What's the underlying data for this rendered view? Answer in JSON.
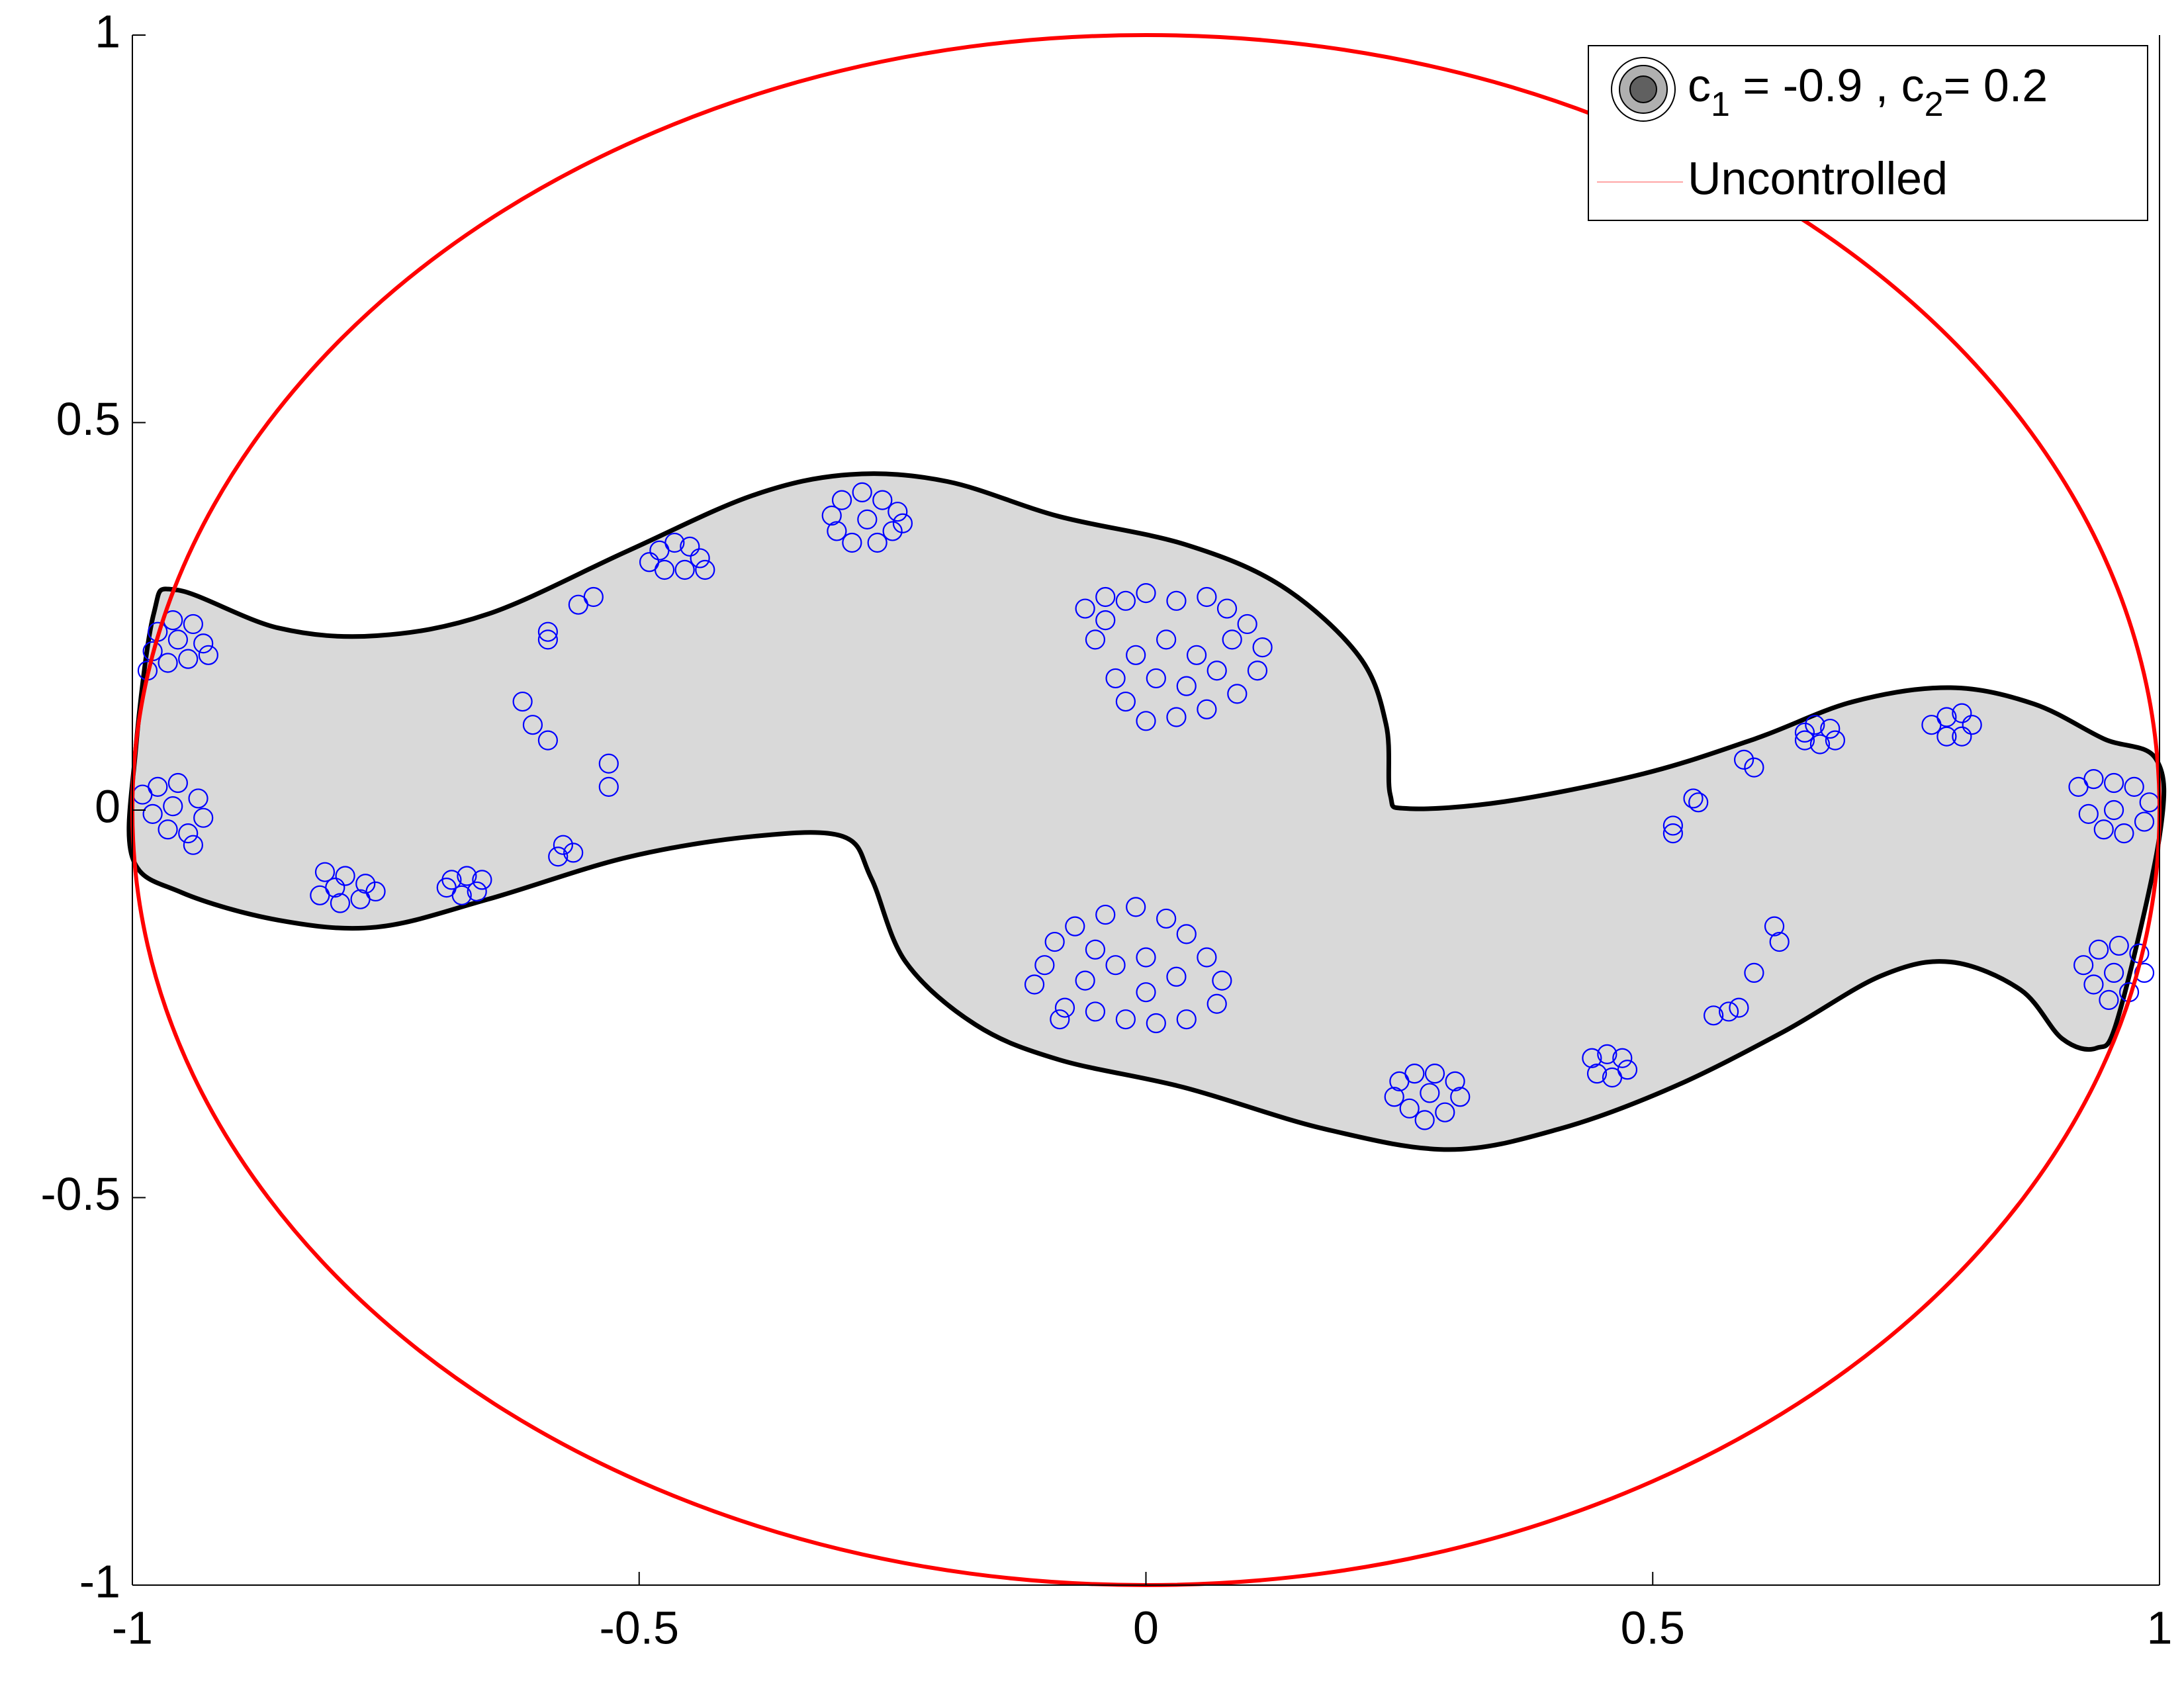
{
  "chart_data": {
    "type": "scatter",
    "xlim": [
      -1,
      1
    ],
    "ylim": [
      -1,
      1
    ],
    "xticks": [
      -1,
      -0.5,
      0,
      0.5,
      1
    ],
    "yticks": [
      -1,
      -0.5,
      0,
      0.5,
      1
    ],
    "legend": "upper right",
    "region": {
      "fill": "#d9d9d9",
      "edge": "#000000",
      "x": [
        -0.997,
        -0.979,
        -0.956,
        -0.856,
        -0.759,
        -0.649,
        -0.512,
        -0.388,
        -0.292,
        -0.196,
        -0.086,
        0.038,
        0.134,
        0.21,
        0.237,
        0.241,
        0.258,
        0.354,
        0.491,
        0.601,
        0.698,
        0.794,
        0.876,
        0.945,
        0.997,
        1.0,
        0.959,
        0.938,
        0.904,
        0.863,
        0.794,
        0.725,
        0.629,
        0.519,
        0.409,
        0.299,
        0.175,
        0.038,
        -0.086,
        -0.168,
        -0.237,
        -0.271,
        -0.299,
        -0.388,
        -0.512,
        -0.649,
        -0.759,
        -0.856,
        -0.952,
        -1.0
      ],
      "y": [
        0.074,
        0.253,
        0.284,
        0.235,
        0.225,
        0.253,
        0.334,
        0.406,
        0.433,
        0.424,
        0.379,
        0.343,
        0.289,
        0.199,
        0.11,
        0.02,
        0.002,
        0.011,
        0.047,
        0.092,
        0.14,
        0.158,
        0.137,
        0.092,
        0.065,
        -0.034,
        -0.268,
        -0.307,
        -0.295,
        -0.232,
        -0.196,
        -0.214,
        -0.286,
        -0.358,
        -0.411,
        -0.438,
        -0.411,
        -0.358,
        -0.322,
        -0.277,
        -0.196,
        -0.088,
        -0.034,
        -0.034,
        -0.061,
        -0.115,
        -0.151,
        -0.142,
        -0.106,
        -0.061
      ]
    },
    "series": [
      {
        "name": [
          "c",
          "1",
          " = -0.9 , c",
          "2",
          "= 0.2"
        ],
        "color": "#0000ff",
        "type": "scatter",
        "x": [
          -0.975,
          -0.96,
          -0.94,
          -0.93,
          -0.945,
          -0.965,
          -0.98,
          -0.955,
          -0.925,
          -0.985,
          -0.99,
          -0.975,
          -0.955,
          -0.935,
          -0.93,
          -0.945,
          -0.965,
          -0.98,
          -0.96,
          -0.94,
          -0.81,
          -0.79,
          -0.77,
          -0.775,
          -0.795,
          -0.815,
          -0.8,
          -0.76,
          -0.685,
          -0.67,
          -0.655,
          -0.66,
          -0.675,
          -0.69,
          -0.615,
          -0.605,
          -0.59,
          -0.59,
          -0.59,
          -0.56,
          -0.545,
          -0.53,
          -0.53,
          -0.575,
          -0.58,
          -0.565,
          -0.48,
          -0.465,
          -0.45,
          -0.44,
          -0.455,
          -0.475,
          -0.49,
          -0.435,
          -0.31,
          -0.3,
          -0.28,
          -0.26,
          -0.245,
          -0.25,
          -0.265,
          -0.29,
          -0.305,
          -0.275,
          -0.24,
          -0.06,
          -0.04,
          -0.02,
          0.0,
          0.03,
          0.06,
          0.08,
          0.1,
          0.115,
          0.11,
          0.09,
          0.06,
          0.03,
          0.0,
          -0.02,
          -0.03,
          -0.05,
          -0.01,
          0.02,
          0.05,
          0.07,
          0.04,
          0.01,
          -0.04,
          0.085,
          -0.1,
          -0.11,
          -0.09,
          -0.07,
          -0.04,
          -0.01,
          0.02,
          0.04,
          0.06,
          0.075,
          0.07,
          0.04,
          0.01,
          -0.02,
          -0.05,
          -0.08,
          -0.06,
          -0.03,
          0.0,
          0.03,
          -0.05,
          0.0,
          -0.085,
          0.25,
          0.265,
          0.285,
          0.305,
          0.31,
          0.295,
          0.275,
          0.26,
          0.245,
          0.28,
          0.44,
          0.455,
          0.47,
          0.475,
          0.46,
          0.445,
          0.52,
          0.52,
          0.54,
          0.545,
          0.6,
          0.59,
          0.62,
          0.625,
          0.6,
          0.56,
          0.575,
          0.585,
          0.65,
          0.66,
          0.675,
          0.68,
          0.665,
          0.65,
          0.775,
          0.79,
          0.805,
          0.815,
          0.805,
          0.79,
          0.92,
          0.935,
          0.955,
          0.975,
          0.99,
          0.985,
          0.965,
          0.945,
          0.93,
          0.955,
          0.925,
          0.94,
          0.96,
          0.98,
          0.985,
          0.97,
          0.95,
          0.935,
          0.955
        ],
        "y": [
          0.23,
          0.245,
          0.24,
          0.215,
          0.195,
          0.19,
          0.205,
          0.22,
          0.2,
          0.18,
          0.02,
          0.03,
          0.035,
          0.015,
          -0.01,
          -0.03,
          -0.025,
          -0.005,
          0.005,
          -0.045,
          -0.08,
          -0.085,
          -0.095,
          -0.115,
          -0.12,
          -0.11,
          -0.1,
          -0.105,
          -0.09,
          -0.085,
          -0.09,
          -0.105,
          -0.11,
          -0.1,
          0.14,
          0.11,
          0.09,
          0.22,
          0.23,
          0.265,
          0.275,
          0.06,
          0.03,
          -0.045,
          -0.06,
          -0.055,
          0.335,
          0.345,
          0.34,
          0.325,
          0.31,
          0.31,
          0.32,
          0.31,
          0.38,
          0.4,
          0.41,
          0.4,
          0.385,
          0.36,
          0.345,
          0.345,
          0.36,
          0.375,
          0.37,
          0.26,
          0.275,
          0.27,
          0.28,
          0.27,
          0.275,
          0.26,
          0.24,
          0.21,
          0.18,
          0.15,
          0.13,
          0.12,
          0.115,
          0.14,
          0.17,
          0.22,
          0.2,
          0.22,
          0.2,
          0.18,
          0.16,
          0.17,
          0.245,
          0.22,
          -0.2,
          -0.225,
          -0.17,
          -0.15,
          -0.135,
          -0.125,
          -0.14,
          -0.16,
          -0.19,
          -0.22,
          -0.25,
          -0.27,
          -0.275,
          -0.27,
          -0.26,
          -0.255,
          -0.22,
          -0.2,
          -0.19,
          -0.215,
          -0.18,
          -0.235,
          -0.27,
          -0.35,
          -0.34,
          -0.34,
          -0.35,
          -0.37,
          -0.39,
          -0.4,
          -0.385,
          -0.37,
          -0.365,
          -0.32,
          -0.315,
          -0.32,
          -0.335,
          -0.345,
          -0.34,
          -0.03,
          -0.02,
          0.015,
          0.01,
          0.055,
          0.065,
          -0.15,
          -0.17,
          -0.21,
          -0.265,
          -0.26,
          -0.255,
          0.1,
          0.11,
          0.105,
          0.09,
          0.085,
          0.09,
          0.11,
          0.12,
          0.125,
          0.11,
          0.095,
          0.095,
          0.03,
          0.04,
          0.035,
          0.03,
          0.01,
          -0.015,
          -0.03,
          -0.025,
          -0.005,
          0.0,
          -0.2,
          -0.18,
          -0.175,
          -0.185,
          -0.21,
          -0.235,
          -0.245,
          -0.225,
          -0.21
        ]
      },
      {
        "name": "Uncontrolled",
        "color": "#ff0000",
        "type": "line",
        "x": [
          1,
          0.985,
          0.94,
          0.866,
          0.766,
          0.643,
          0.5,
          0.342,
          0.174,
          0,
          -0.174,
          -0.342,
          -0.5,
          -0.643,
          -0.766,
          -0.866,
          -0.94,
          -0.985,
          -1,
          -0.985,
          -0.94,
          -0.866,
          -0.766,
          -0.643,
          -0.5,
          -0.342,
          -0.174,
          0,
          0.174,
          0.342,
          0.5,
          0.643,
          0.766,
          0.866,
          0.94,
          0.985
        ],
        "y": [
          0,
          0.174,
          0.342,
          0.5,
          0.643,
          0.766,
          0.866,
          0.94,
          0.985,
          1,
          0.985,
          0.94,
          0.866,
          0.766,
          0.643,
          0.5,
          0.342,
          0.174,
          0,
          -0.174,
          -0.342,
          -0.5,
          -0.643,
          -0.766,
          -0.866,
          -0.94,
          -0.985,
          -1,
          -0.985,
          -0.94,
          -0.866,
          -0.766,
          -0.643,
          -0.5,
          -0.342,
          -0.174
        ]
      }
    ]
  }
}
